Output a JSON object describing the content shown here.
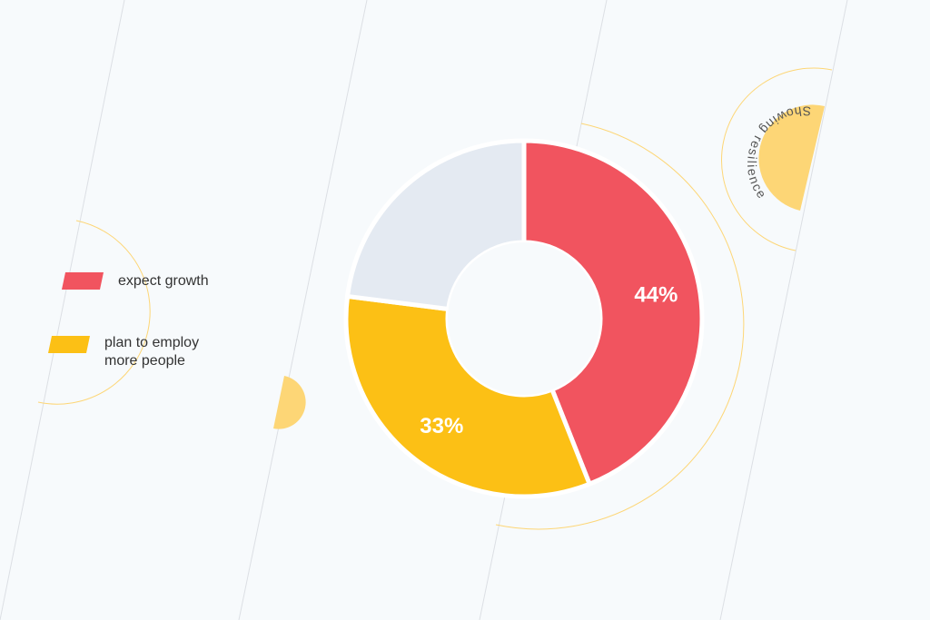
{
  "colors": {
    "background": "#f7fafc",
    "red": "#f1545f",
    "yellow": "#fcc015",
    "grey": "#e4eaf2",
    "accent_light": "#fdd676",
    "line": "#dcdfe4",
    "text": "#333333",
    "white": "#ffffff"
  },
  "legend": [
    {
      "label": "expect growth",
      "color": "#f1545f"
    },
    {
      "label": "plan to employ more people",
      "line1": "plan to employ",
      "line2": "more people",
      "color": "#fcc015"
    }
  ],
  "badge": {
    "text": "Showing resilience"
  },
  "chart_data": {
    "type": "pie",
    "variant": "donut",
    "title": "",
    "slices": [
      {
        "label": "expect growth",
        "value": 44,
        "display": "44%",
        "color": "#f1545f"
      },
      {
        "label": "plan to employ more people",
        "value": 33,
        "display": "33%",
        "color": "#fcc015"
      },
      {
        "label": "",
        "value": 23,
        "display": "",
        "color": "#e4eaf2"
      }
    ],
    "legend_position": "left"
  }
}
